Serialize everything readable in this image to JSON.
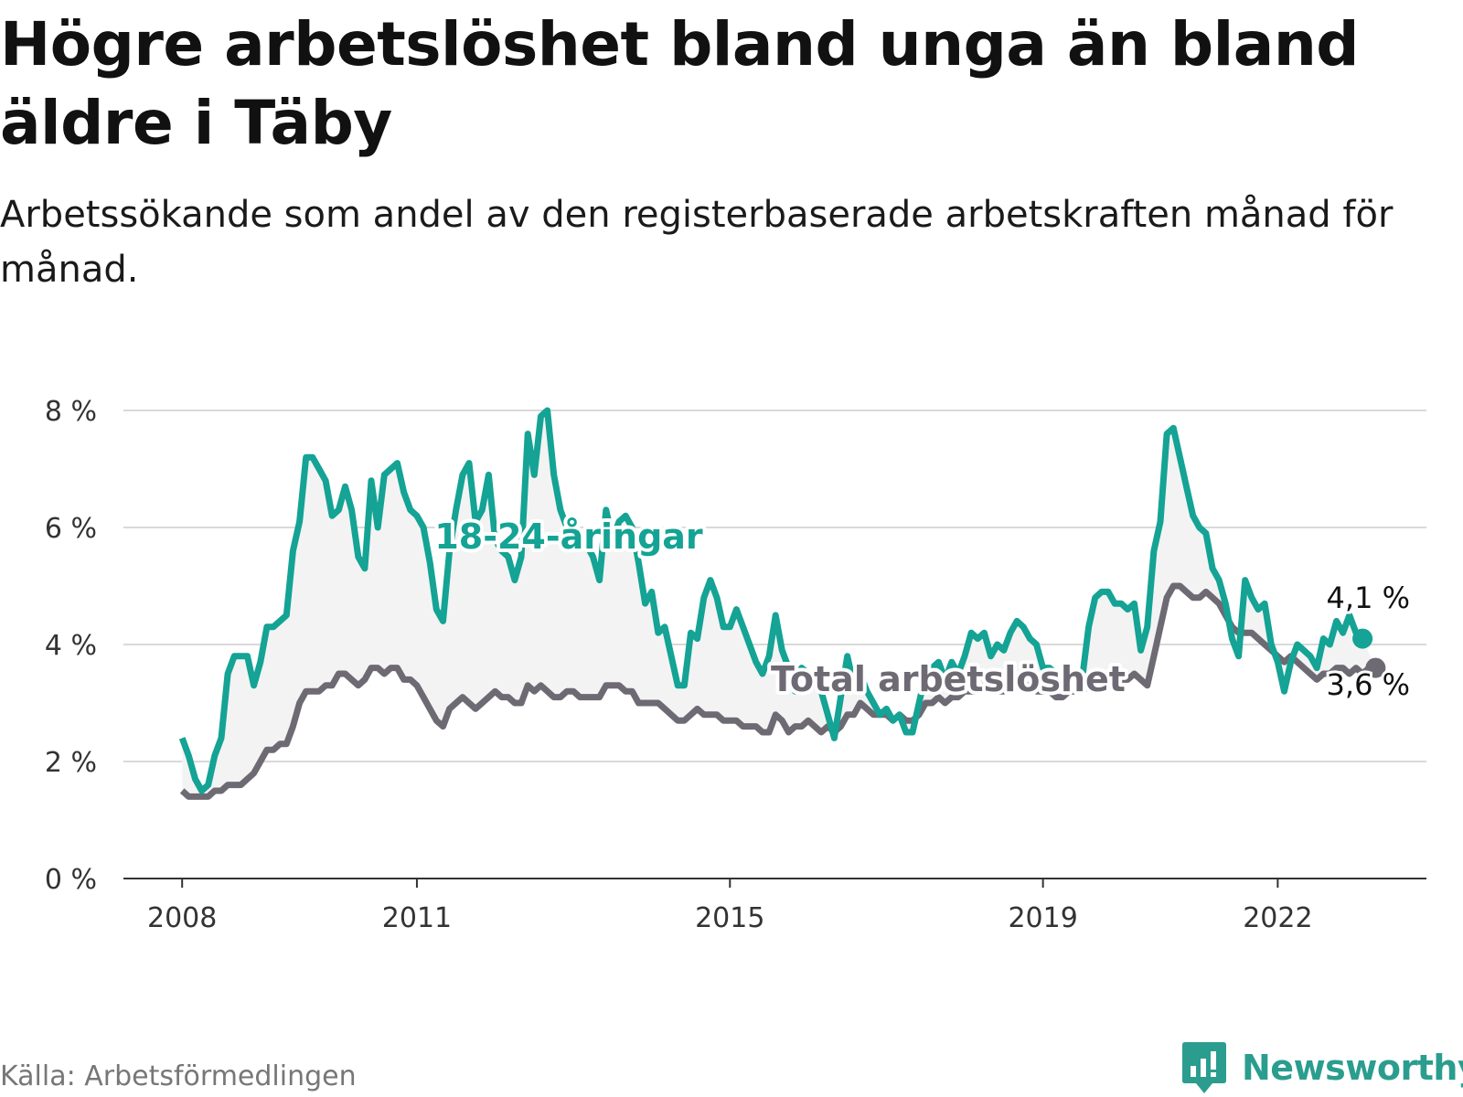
{
  "header": {
    "title": "Högre arbetslöshet bland unga än bland äldre i Täby",
    "subtitle": "Arbetssökande som andel av den registerbaserade arbetskraften månad för månad."
  },
  "footer": {
    "source": "Källa: Arbetsförmedlingen",
    "brand": "Newsworthy"
  },
  "colors": {
    "youth": "#14a394",
    "total": "#6e6a73",
    "band": "#f3f3f3",
    "grid": "#d9d9d9",
    "axis": "#333333",
    "brand": "#2a9d8f"
  },
  "chart_data": {
    "type": "line",
    "title": "Högre arbetslöshet bland unga än bland äldre i Täby",
    "xlabel": "",
    "ylabel": "",
    "x_start": 2008.0,
    "x_step": 0.0833333,
    "xlim": [
      2007.25,
      2023.9
    ],
    "ylim": [
      0,
      8
    ],
    "grid": true,
    "yticks": [
      {
        "value": 0,
        "label": "0 %"
      },
      {
        "value": 2,
        "label": "2 %"
      },
      {
        "value": 4,
        "label": "4 %"
      },
      {
        "value": 6,
        "label": "6 %"
      },
      {
        "value": 8,
        "label": "8 %"
      }
    ],
    "xticks": [
      {
        "value": 2008,
        "label": "2008"
      },
      {
        "value": 2011,
        "label": "2011"
      },
      {
        "value": 2015,
        "label": "2015"
      },
      {
        "value": 2019,
        "label": "2019"
      },
      {
        "value": 2022,
        "label": "2022"
      }
    ],
    "series": [
      {
        "name": "18-24-åringar",
        "label": "18-24-åringar",
        "end_label": "4,1 %",
        "values": [
          2.4,
          2.1,
          1.7,
          1.5,
          1.6,
          2.1,
          2.4,
          3.5,
          3.8,
          3.8,
          3.8,
          3.3,
          3.7,
          4.3,
          4.3,
          4.4,
          4.5,
          5.6,
          6.1,
          7.2,
          7.2,
          7.0,
          6.8,
          6.2,
          6.3,
          6.7,
          6.3,
          5.5,
          5.3,
          6.8,
          6.0,
          6.9,
          7.0,
          7.1,
          6.6,
          6.3,
          6.2,
          6.0,
          5.4,
          4.6,
          4.4,
          5.6,
          6.3,
          6.9,
          7.1,
          6.1,
          6.3,
          6.9,
          5.8,
          5.6,
          5.5,
          5.1,
          5.5,
          7.6,
          6.9,
          7.9,
          8.0,
          6.9,
          6.3,
          6.0,
          5.9,
          5.8,
          5.7,
          5.5,
          5.1,
          6.3,
          5.8,
          6.1,
          6.2,
          6.0,
          5.4,
          4.7,
          4.9,
          4.2,
          4.3,
          3.8,
          3.3,
          3.3,
          4.2,
          4.1,
          4.8,
          5.1,
          4.8,
          4.3,
          4.3,
          4.6,
          4.3,
          4.0,
          3.7,
          3.5,
          3.8,
          4.5,
          3.9,
          3.6,
          3.2,
          3.6,
          3.5,
          3.3,
          3.2,
          2.8,
          2.4,
          3.1,
          3.8,
          3.3,
          3.5,
          3.2,
          3.0,
          2.8,
          2.9,
          2.7,
          2.8,
          2.5,
          2.5,
          3.0,
          3.5,
          3.6,
          3.7,
          3.4,
          3.7,
          3.5,
          3.8,
          4.2,
          4.1,
          4.2,
          3.8,
          4.0,
          3.9,
          4.2,
          4.4,
          4.3,
          4.1,
          4.0,
          3.6,
          3.6,
          3.5,
          3.4,
          3.5,
          3.2,
          3.4,
          4.3,
          4.8,
          4.9,
          4.9,
          4.7,
          4.7,
          4.6,
          4.7,
          3.9,
          4.3,
          5.6,
          6.1,
          7.6,
          7.7,
          7.2,
          6.7,
          6.2,
          6.0,
          5.9,
          5.3,
          5.1,
          4.7,
          4.1,
          3.8,
          5.1,
          4.8,
          4.6,
          4.7,
          4.0,
          3.7,
          3.2,
          3.7,
          4.0,
          3.9,
          3.8,
          3.6,
          4.1,
          4.0,
          4.4,
          4.2,
          4.5,
          4.2,
          4.1
        ]
      },
      {
        "name": "Total arbetslöshet",
        "label": "Total arbetslöshet",
        "end_label": "3,6 %",
        "values": [
          1.5,
          1.4,
          1.4,
          1.4,
          1.4,
          1.5,
          1.5,
          1.6,
          1.6,
          1.6,
          1.7,
          1.8,
          2.0,
          2.2,
          2.2,
          2.3,
          2.3,
          2.6,
          3.0,
          3.2,
          3.2,
          3.2,
          3.3,
          3.3,
          3.5,
          3.5,
          3.4,
          3.3,
          3.4,
          3.6,
          3.6,
          3.5,
          3.6,
          3.6,
          3.4,
          3.4,
          3.3,
          3.1,
          2.9,
          2.7,
          2.6,
          2.9,
          3.0,
          3.1,
          3.0,
          2.9,
          3.0,
          3.1,
          3.2,
          3.1,
          3.1,
          3.0,
          3.0,
          3.3,
          3.2,
          3.3,
          3.2,
          3.1,
          3.1,
          3.2,
          3.2,
          3.1,
          3.1,
          3.1,
          3.1,
          3.3,
          3.3,
          3.3,
          3.2,
          3.2,
          3.0,
          3.0,
          3.0,
          3.0,
          2.9,
          2.8,
          2.7,
          2.7,
          2.8,
          2.9,
          2.8,
          2.8,
          2.8,
          2.7,
          2.7,
          2.7,
          2.6,
          2.6,
          2.6,
          2.5,
          2.5,
          2.8,
          2.7,
          2.5,
          2.6,
          2.6,
          2.7,
          2.6,
          2.5,
          2.6,
          2.5,
          2.6,
          2.8,
          2.8,
          3.0,
          2.9,
          2.8,
          2.8,
          2.8,
          2.7,
          2.8,
          2.7,
          2.7,
          2.8,
          3.0,
          3.0,
          3.1,
          3.0,
          3.1,
          3.1,
          3.2,
          3.2,
          3.2,
          3.3,
          3.2,
          3.2,
          3.2,
          3.3,
          3.4,
          3.3,
          3.3,
          3.2,
          3.2,
          3.2,
          3.1,
          3.1,
          3.2,
          3.2,
          3.2,
          3.3,
          3.4,
          3.5,
          3.5,
          3.4,
          3.4,
          3.4,
          3.5,
          3.4,
          3.3,
          3.8,
          4.3,
          4.8,
          5.0,
          5.0,
          4.9,
          4.8,
          4.8,
          4.9,
          4.8,
          4.7,
          4.5,
          4.3,
          4.2,
          4.2,
          4.2,
          4.1,
          4.0,
          3.9,
          3.8,
          3.7,
          3.8,
          3.7,
          3.6,
          3.5,
          3.4,
          3.5,
          3.5,
          3.6,
          3.6,
          3.5,
          3.6,
          3.5,
          3.6,
          3.6
        ]
      }
    ]
  }
}
